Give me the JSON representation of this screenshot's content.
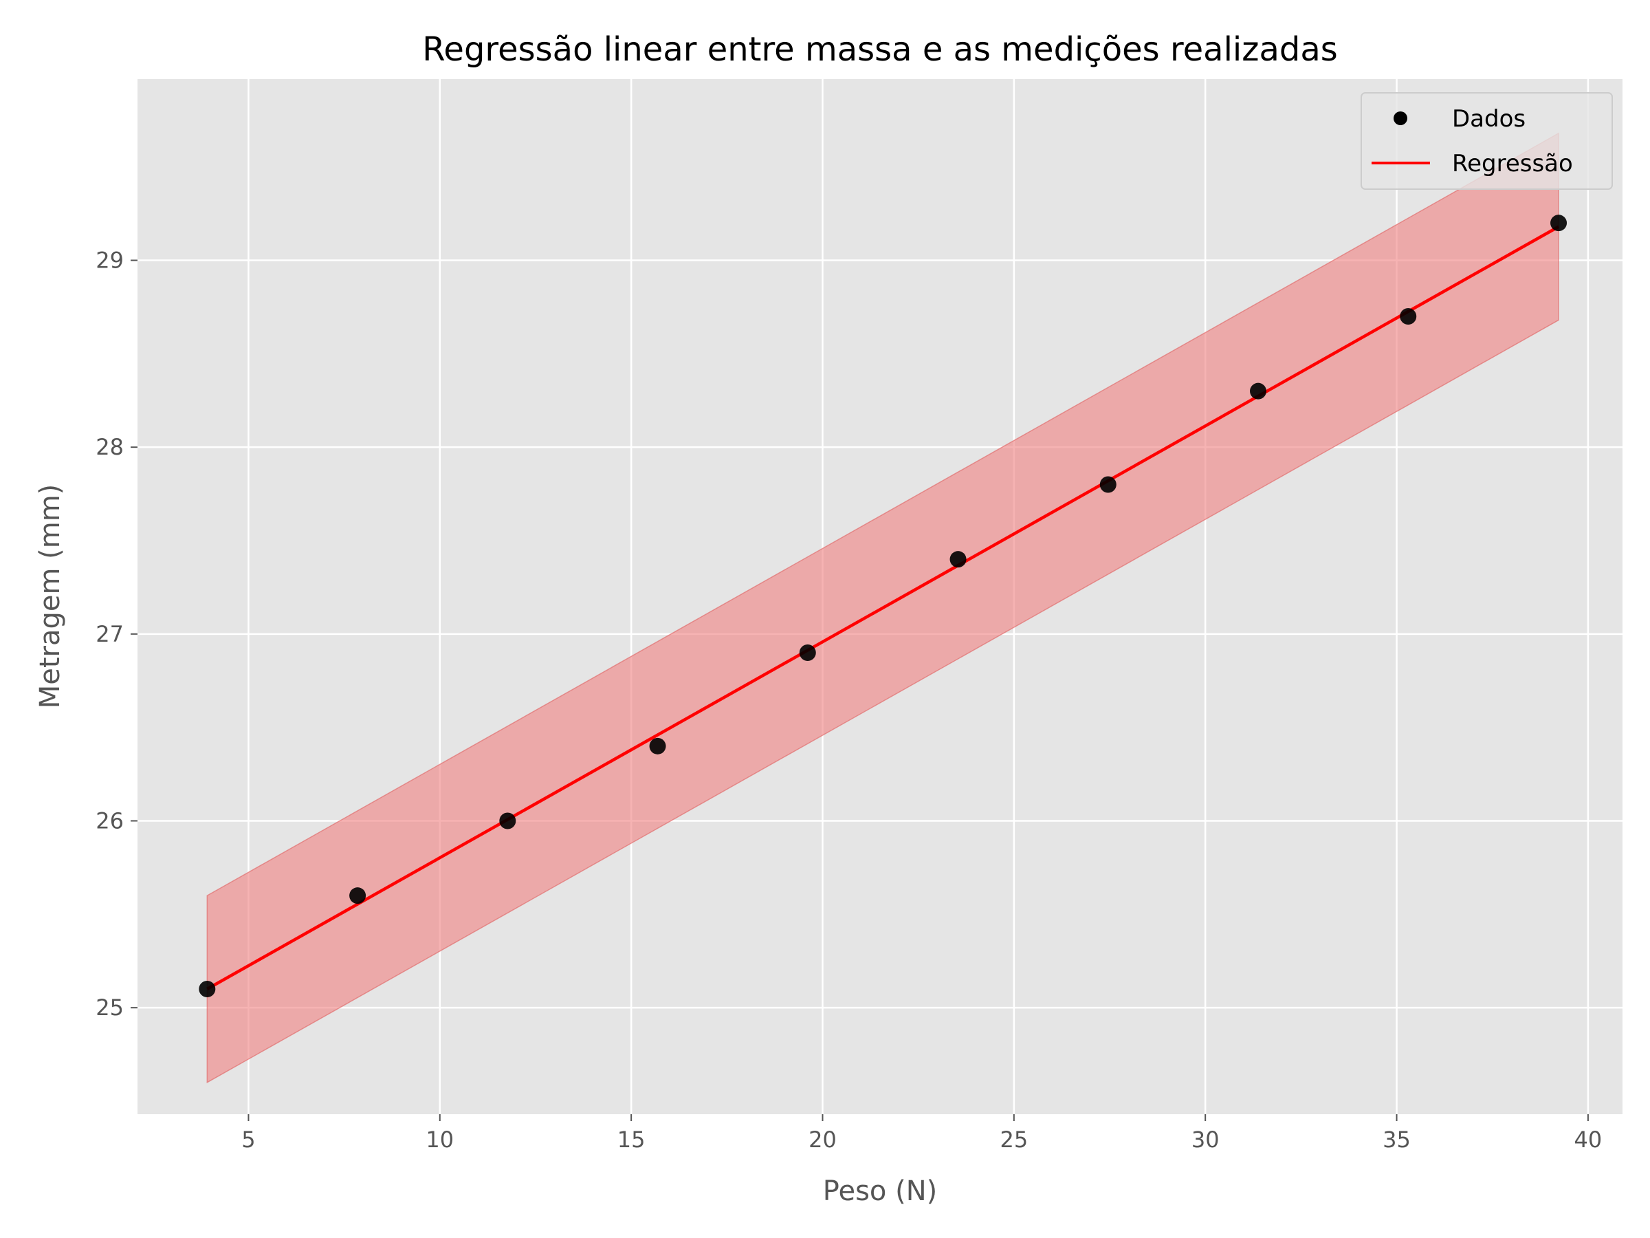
{
  "chart_data": {
    "type": "scatter",
    "title": "Regressão linear entre massa e as medições realizadas",
    "xlabel": "Peso (N)",
    "ylabel": "Metragem (mm)",
    "xlim": [
      2.1,
      40.9
    ],
    "ylim": [
      24.43,
      29.97
    ],
    "x_ticks": [
      5,
      10,
      15,
      20,
      25,
      30,
      35,
      40
    ],
    "x_tick_labels": [
      "5",
      "10",
      "15",
      "20",
      "25",
      "30",
      "35",
      "40"
    ],
    "y_ticks": [
      25,
      26,
      27,
      28,
      29
    ],
    "y_tick_labels": [
      "25",
      "26",
      "27",
      "28",
      "29"
    ],
    "grid": true,
    "legend_position": "top-right",
    "series": [
      {
        "name": "Dados",
        "kind": "scatter",
        "color": "#000000",
        "x": [
          3.92,
          7.85,
          11.77,
          15.69,
          19.61,
          23.54,
          27.46,
          31.38,
          35.3,
          39.23
        ],
        "y": [
          25.1,
          25.6,
          26.0,
          26.4,
          26.9,
          27.4,
          27.8,
          28.3,
          28.7,
          29.2
        ]
      },
      {
        "name": "Regressão",
        "kind": "line",
        "color": "#ff0000",
        "x": [
          3.92,
          39.23
        ],
        "y": [
          25.1,
          29.18
        ]
      }
    ],
    "band": {
      "color": "#f08080",
      "x": [
        3.92,
        39.23
      ],
      "lower": [
        24.6,
        28.68
      ],
      "upper": [
        25.6,
        29.68
      ]
    }
  },
  "colors": {
    "plot_background": "#e5e5e5",
    "grid": "#ffffff",
    "tick_text": "#555555"
  }
}
